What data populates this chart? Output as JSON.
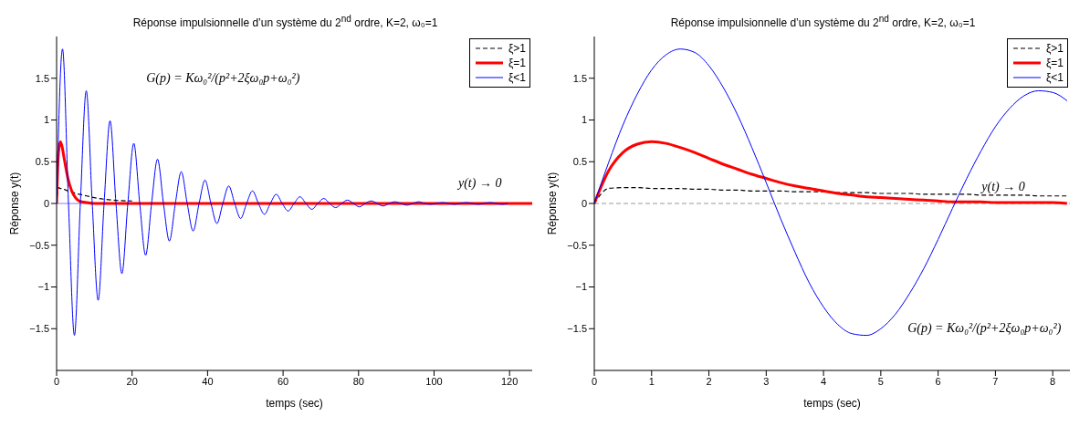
{
  "chart_data": [
    {
      "type": "line",
      "title": "Réponse impulsionnelle d’un système du 2$^{nd}$ ordre, K=2, ω₀=1",
      "xlabel": "temps (sec)",
      "ylabel": "Réponse y(t)",
      "xlim": [
        0,
        126
      ],
      "xticks": [
        0,
        20,
        40,
        60,
        80,
        100,
        120
      ],
      "ylim": [
        -2,
        2
      ],
      "yticks": [
        {
          "value": -1.5,
          "label": "−1.5"
        },
        {
          "value": -1,
          "label": "−1"
        },
        {
          "value": -0.5,
          "label": "−0.5"
        },
        0,
        0.5,
        1,
        1.5
      ],
      "legend": "top right",
      "annotations": [
        "G(p) = Kω₀²/(p²+2ξω₀p+ω₀²)",
        "y(t) → 0"
      ],
      "ref_lines": [
        {
          "axis": "y",
          "value": 0,
          "color": "#8080ff",
          "line_style": "solid"
        }
      ],
      "series": [
        {
          "name": "ξ>1",
          "color": "#000000",
          "line_style": "dashed",
          "x": [
            0,
            0.5,
            1,
            1.5,
            2,
            3,
            4,
            5,
            6,
            8,
            10,
            15,
            20
          ],
          "values": [
            0,
            0.19,
            0.18,
            0.18,
            0.17,
            0.15,
            0.14,
            0.12,
            0.11,
            0.09,
            0.07,
            0.04,
            0.03
          ]
        },
        {
          "name": "ξ=1",
          "color": "#ff0000",
          "line_style": "solid",
          "x": [
            0,
            0.5,
            1,
            1.5,
            2,
            3,
            4,
            5,
            6,
            8,
            10,
            15,
            20,
            30,
            50,
            80,
            126
          ],
          "values": [
            0,
            0.61,
            0.74,
            0.67,
            0.54,
            0.3,
            0.15,
            0.07,
            0.03,
            0.01,
            0,
            0,
            0,
            0,
            0,
            0,
            0
          ]
        },
        {
          "name": "ξ<1",
          "color": "#0000ff",
          "line_style": "solid",
          "x": [
            0,
            1.57,
            3.15,
            4.72,
            6.29,
            7.86,
            9.44,
            11.01,
            12.58,
            14.16,
            15.73,
            17.3,
            18.87,
            20.45,
            22.02,
            23.59,
            25.16,
            26.74,
            28.31,
            29.88,
            31.46,
            33.03,
            34.6,
            36.17,
            37.75,
            39.32,
            40.89,
            42.47,
            44.04,
            45.61,
            47.18,
            48.76,
            50.33,
            51.9,
            53.47,
            55.05,
            56.62,
            58.19,
            59.76,
            61.34,
            62.91,
            64.48,
            66.06,
            67.63,
            69.2,
            70.78,
            72.35,
            73.92,
            75.49,
            77.07,
            78.64,
            80.21,
            81.78,
            83.36,
            84.93,
            86.5,
            88.07,
            89.65,
            91.22,
            92.79,
            94.37,
            95.94,
            97.51,
            99.08,
            100.66,
            102.23,
            103.8,
            105.37,
            106.95,
            108.52,
            110.09,
            111.67,
            113.24,
            114.81,
            116.38,
            117.96,
            119.53
          ],
          "values": [
            0,
            1.85,
            0,
            -1.58,
            0,
            1.35,
            0,
            -1.16,
            0,
            0.99,
            0,
            -0.84,
            0,
            0.72,
            0,
            -0.62,
            0,
            0.53,
            0,
            -0.45,
            0,
            0.38,
            0,
            -0.33,
            0,
            0.28,
            0,
            -0.24,
            0,
            0.21,
            0,
            -0.18,
            0,
            0.15,
            0,
            -0.13,
            0,
            0.11,
            0,
            -0.09,
            0,
            0.08,
            0,
            -0.07,
            0,
            0.06,
            0,
            -0.05,
            0,
            0.04,
            0,
            -0.04,
            0,
            0.03,
            0,
            -0.03,
            0,
            0.02,
            0,
            -0.02,
            0,
            0.02,
            0,
            -0.01,
            0,
            0.01,
            0,
            -0.01,
            0,
            0.01,
            0,
            -0.01,
            0,
            0.01,
            0,
            -0.01,
            0
          ]
        }
      ]
    },
    {
      "type": "line",
      "title": "Réponse impulsionnelle d’un système du 2$^{nd}$ ordre, K=2, ω₀=1",
      "xlabel": "temps (sec)",
      "ylabel": "Réponse y(t)",
      "xlim": [
        0,
        8.3
      ],
      "xticks": [
        0,
        1,
        2,
        3,
        4,
        5,
        6,
        7,
        8
      ],
      "ylim": [
        -2,
        2
      ],
      "yticks": [
        {
          "value": -1.5,
          "label": "−1.5"
        },
        {
          "value": -1,
          "label": "−1"
        },
        {
          "value": -0.5,
          "label": "−0.5"
        },
        0,
        0.5,
        1,
        1.5
      ],
      "legend": "top right",
      "annotations": [
        "y(t) → 0",
        "G(p) = Kω₀²/(p²+2ξω₀p+ω₀²)"
      ],
      "ref_lines": [
        {
          "axis": "y",
          "value": 0,
          "color": "#999999",
          "line_style": "dashed"
        }
      ],
      "x": [
        0,
        0.25,
        0.5,
        0.75,
        1,
        1.25,
        1.5,
        1.75,
        2,
        2.25,
        2.5,
        2.75,
        3,
        3.25,
        3.5,
        3.75,
        4,
        4.25,
        4.5,
        4.75,
        5,
        5.25,
        5.5,
        5.75,
        6,
        6.25,
        6.5,
        6.75,
        7,
        7.25,
        7.5,
        7.75,
        8,
        8.25
      ],
      "series": [
        {
          "name": "ξ>1",
          "color": "#000000",
          "line_style": "dashed",
          "values": [
            0,
            0.18,
            0.19,
            0.19,
            0.18,
            0.18,
            0.18,
            0.17,
            0.17,
            0.16,
            0.16,
            0.15,
            0.15,
            0.15,
            0.14,
            0.14,
            0.14,
            0.13,
            0.13,
            0.13,
            0.12,
            0.12,
            0.12,
            0.11,
            0.11,
            0.11,
            0.11,
            0.1,
            0.1,
            0.1,
            0.1,
            0.09,
            0.09,
            0.09
          ]
        },
        {
          "name": "ξ=1",
          "color": "#ff0000",
          "line_style": "solid",
          "values": [
            0,
            0.39,
            0.61,
            0.71,
            0.74,
            0.72,
            0.67,
            0.61,
            0.54,
            0.47,
            0.41,
            0.35,
            0.3,
            0.25,
            0.21,
            0.18,
            0.15,
            0.12,
            0.1,
            0.08,
            0.07,
            0.06,
            0.05,
            0.04,
            0.03,
            0.02,
            0.02,
            0.02,
            0.01,
            0.01,
            0.01,
            0.01,
            0.01,
            0
          ]
        },
        {
          "name": "ξ<1",
          "color": "#0000ff",
          "line_style": "solid",
          "values": [
            0,
            0.49,
            0.94,
            1.31,
            1.6,
            1.78,
            1.85,
            1.81,
            1.65,
            1.39,
            1.06,
            0.67,
            0.25,
            -0.18,
            -0.58,
            -0.95,
            -1.24,
            -1.45,
            -1.56,
            -1.58,
            -1.5,
            -1.33,
            -1.08,
            -0.78,
            -0.43,
            -0.06,
            0.3,
            0.63,
            0.92,
            1.14,
            1.29,
            1.35,
            1.33,
            1.23
          ]
        }
      ]
    }
  ]
}
